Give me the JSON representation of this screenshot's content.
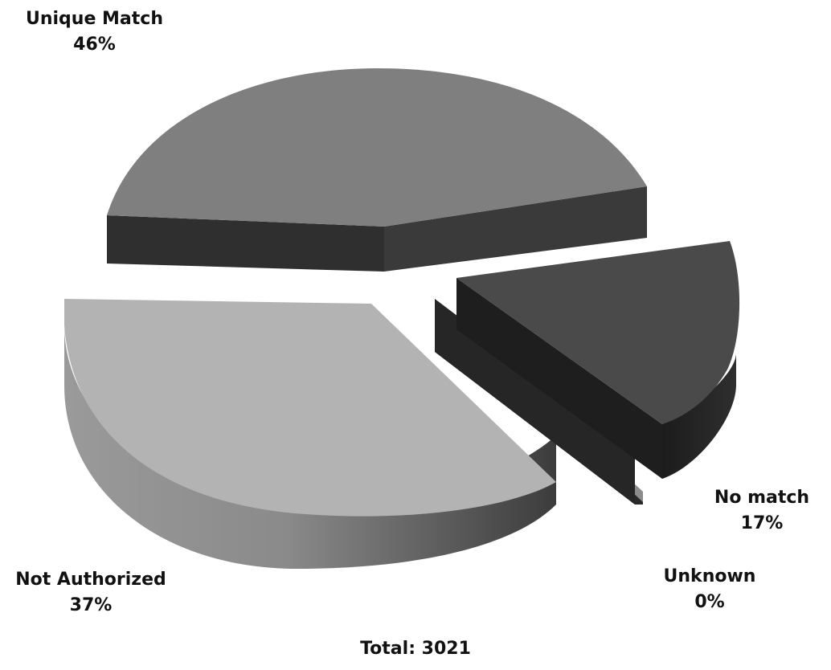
{
  "chart_data": {
    "type": "pie",
    "style": "3d-exploded",
    "total_label": "Total: 3021",
    "slices": [
      {
        "name": "Unique Match",
        "percent_label": "46%",
        "value": 46,
        "color": "#7f7f7f"
      },
      {
        "name": "No match",
        "percent_label": "17%",
        "value": 17,
        "color": "#4a4a4a"
      },
      {
        "name": "Unknown",
        "percent_label": "0%",
        "value": 0,
        "color": "#3a3a3a"
      },
      {
        "name": "Not Authorized",
        "percent_label": "37%",
        "value": 37,
        "color": "#b3b3b3"
      }
    ]
  }
}
